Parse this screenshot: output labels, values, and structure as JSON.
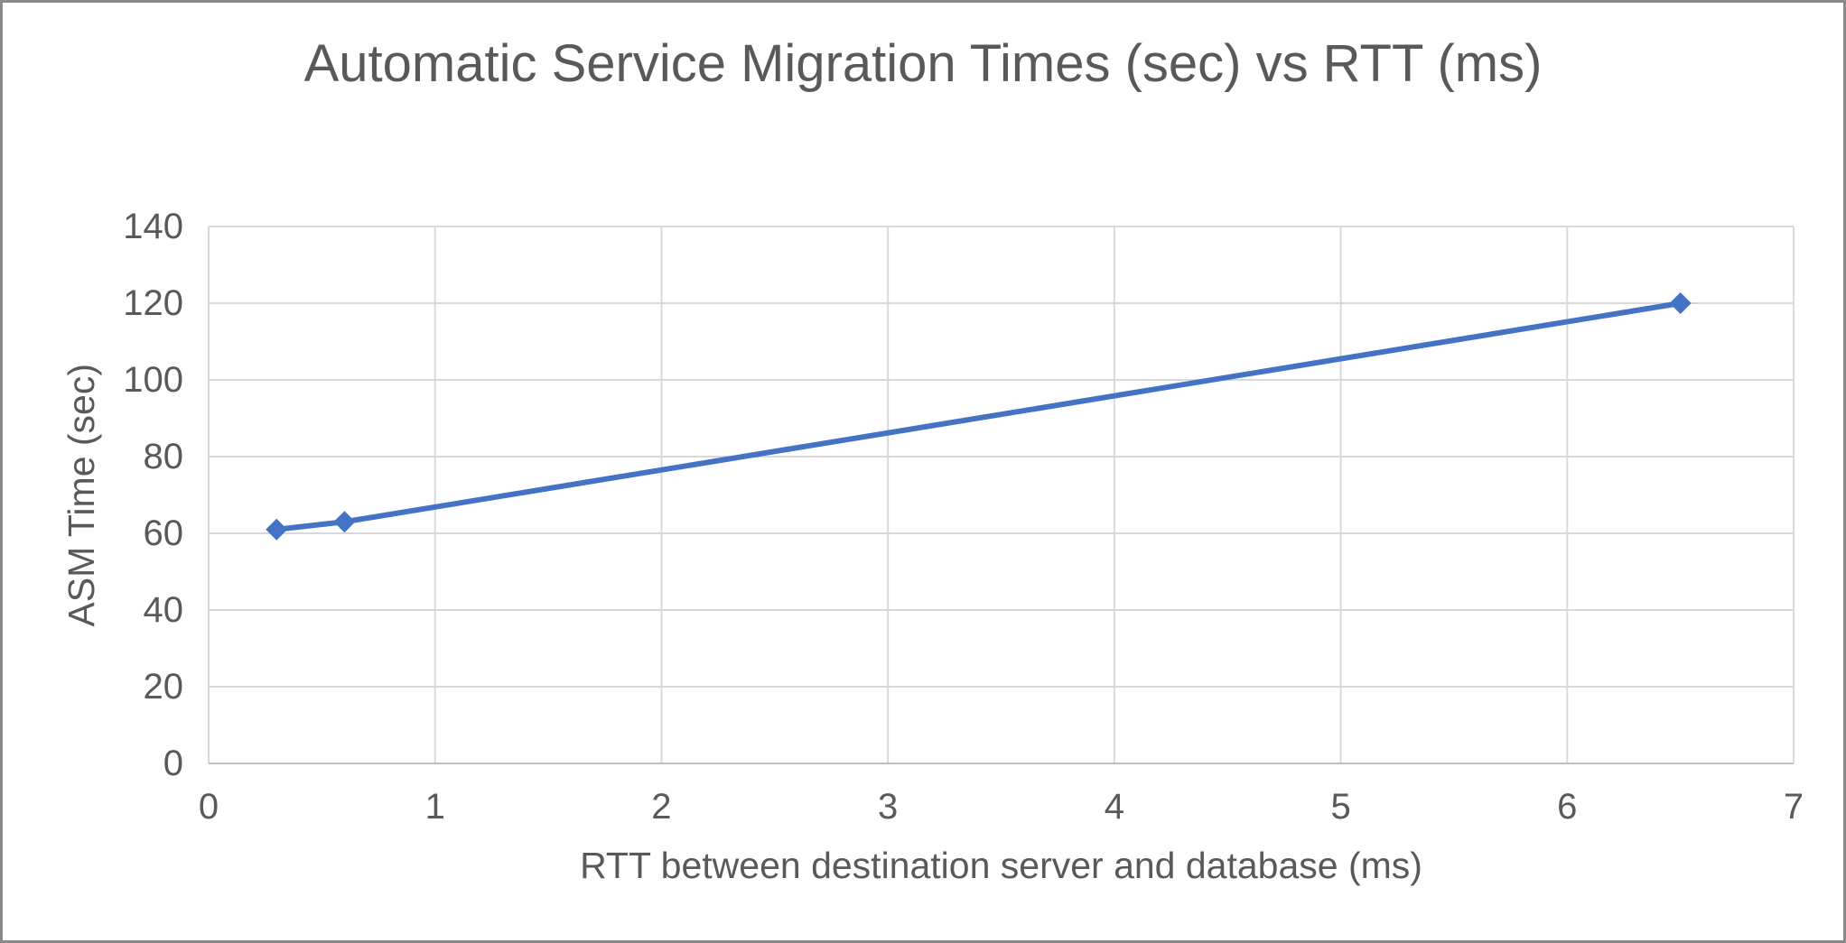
{
  "chart_data": {
    "type": "line",
    "title": "Automatic Service Migration Times (sec) vs RTT (ms)",
    "xlabel": "RTT between destination server and database (ms)",
    "ylabel": "ASM Time (sec)",
    "series": [
      {
        "name": "ASM Time (sec)",
        "points": [
          {
            "x": 0.3,
            "y": 61
          },
          {
            "x": 0.6,
            "y": 63
          },
          {
            "x": 6.5,
            "y": 120
          }
        ]
      }
    ],
    "xlim": [
      0,
      7
    ],
    "ylim": [
      0,
      140
    ],
    "x_ticks": [
      0,
      1,
      2,
      3,
      4,
      5,
      6,
      7
    ],
    "y_ticks": [
      0,
      20,
      40,
      60,
      80,
      100,
      120,
      140
    ],
    "grid": true,
    "legend": false,
    "marker": "diamond",
    "colors": {
      "line": "#4472C4",
      "marker": "#4472C4",
      "gridline": "#D9D9D9",
      "axis_line": "#BFBFBF",
      "text": "#595959",
      "frame_border": "#898989",
      "background": "#FFFFFF"
    }
  }
}
